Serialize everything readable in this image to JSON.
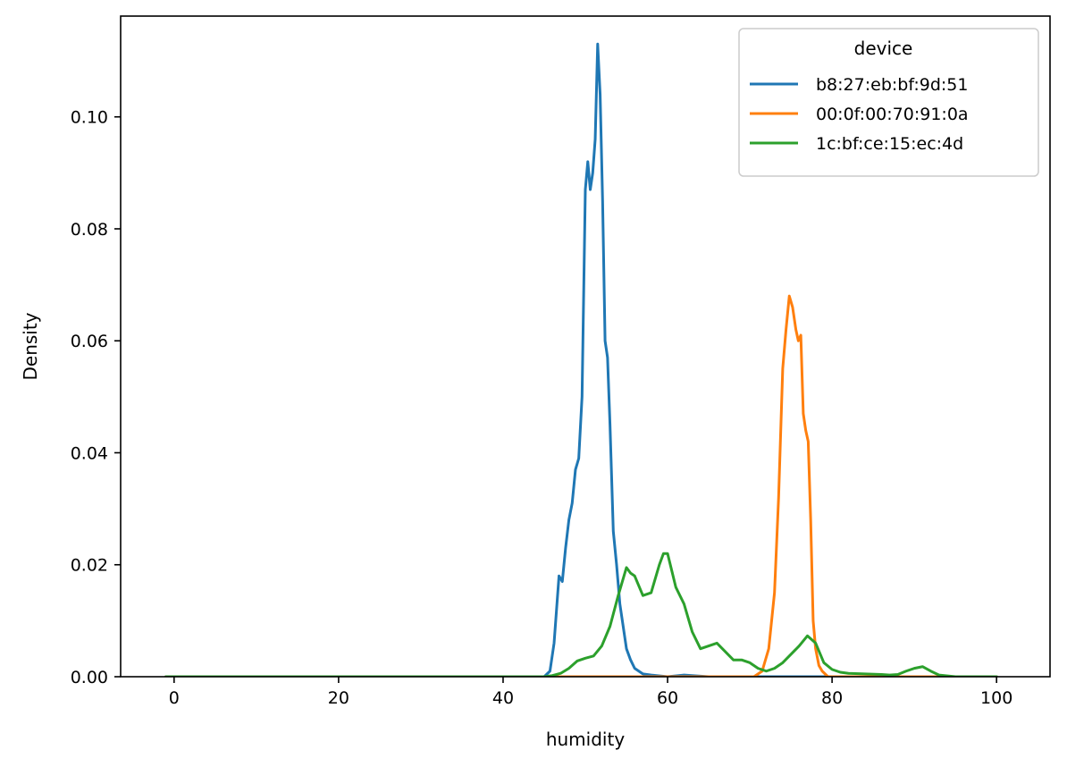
{
  "chart_data": {
    "type": "line",
    "title": "",
    "xlabel": "humidity",
    "ylabel": "Density",
    "xlim": [
      -6.5,
      106.5
    ],
    "ylim": [
      0,
      0.118
    ],
    "xticks": [
      0,
      20,
      40,
      60,
      80,
      100
    ],
    "xtick_labels": [
      "0",
      "20",
      "40",
      "60",
      "80",
      "100"
    ],
    "yticks": [
      0,
      0.02,
      0.04,
      0.06,
      0.08,
      0.1
    ],
    "ytick_labels": [
      "0.00",
      "0.02",
      "0.04",
      "0.06",
      "0.08",
      "0.10"
    ],
    "grid": false,
    "legend": {
      "title": "device",
      "position": "top-right"
    },
    "series": [
      {
        "name": "b8:27:eb:bf:9d:51",
        "color": "#1f77b4",
        "x": [
          -1,
          20,
          40,
          45,
          45.7,
          46.2,
          46.8,
          47.2,
          47.6,
          48,
          48.4,
          48.8,
          49.2,
          49.6,
          50.0,
          50.3,
          50.6,
          50.9,
          51.2,
          51.5,
          51.8,
          52.1,
          52.4,
          52.7,
          53.0,
          53.4,
          53.8,
          54.2,
          54.6,
          55.0,
          55.5,
          56,
          57,
          58,
          60,
          62,
          65,
          80,
          100
        ],
        "y": [
          0,
          0,
          0,
          0,
          0.001,
          0.006,
          0.018,
          0.017,
          0.023,
          0.028,
          0.031,
          0.037,
          0.039,
          0.05,
          0.087,
          0.092,
          0.087,
          0.09,
          0.096,
          0.113,
          0.104,
          0.085,
          0.06,
          0.057,
          0.045,
          0.026,
          0.02,
          0.013,
          0.009,
          0.005,
          0.003,
          0.0015,
          0.0005,
          0.0003,
          0,
          0.0003,
          0,
          0,
          0
        ]
      },
      {
        "name": "00:0f:00:70:91:0a",
        "color": "#ff7f0e",
        "x": [
          -1,
          20,
          40,
          60,
          70.5,
          71.5,
          72.3,
          73.0,
          73.5,
          74.0,
          74.4,
          74.8,
          75.2,
          75.6,
          75.9,
          76.2,
          76.5,
          76.8,
          77.1,
          77.4,
          77.7,
          78.0,
          78.4,
          78.8,
          79.5,
          80.5,
          82,
          100
        ],
        "y": [
          0,
          0,
          0,
          0,
          0,
          0.001,
          0.005,
          0.015,
          0.032,
          0.055,
          0.062,
          0.068,
          0.066,
          0.062,
          0.06,
          0.061,
          0.047,
          0.044,
          0.042,
          0.028,
          0.01,
          0.005,
          0.002,
          0.001,
          0,
          0,
          0,
          0
        ]
      },
      {
        "name": "1c:bf:ce:15:ec:4d",
        "color": "#2ca02c",
        "x": [
          -1,
          20,
          40,
          45,
          46,
          47,
          48,
          49,
          50,
          51,
          52,
          53,
          54,
          55,
          55.5,
          56,
          57,
          58,
          59,
          59.5,
          60,
          61,
          62,
          63,
          64,
          65,
          66,
          67,
          68,
          69,
          70,
          71,
          72,
          73,
          74,
          75,
          76,
          77,
          78,
          79,
          80,
          81,
          82,
          84,
          86,
          87,
          88,
          89,
          90,
          91,
          92,
          93,
          95,
          100
        ],
        "y": [
          0,
          0,
          0,
          0,
          0.0002,
          0.0006,
          0.0015,
          0.0028,
          0.0033,
          0.0037,
          0.0055,
          0.009,
          0.0145,
          0.0195,
          0.0185,
          0.018,
          0.0145,
          0.015,
          0.02,
          0.022,
          0.022,
          0.016,
          0.013,
          0.008,
          0.005,
          0.0055,
          0.006,
          0.0045,
          0.003,
          0.003,
          0.0025,
          0.0015,
          0.001,
          0.0015,
          0.0025,
          0.004,
          0.0055,
          0.0073,
          0.006,
          0.0025,
          0.0013,
          0.0008,
          0.0006,
          0.0005,
          0.0004,
          0.0003,
          0.0004,
          0.001,
          0.0015,
          0.0018,
          0.001,
          0.0003,
          0,
          0
        ]
      }
    ]
  }
}
